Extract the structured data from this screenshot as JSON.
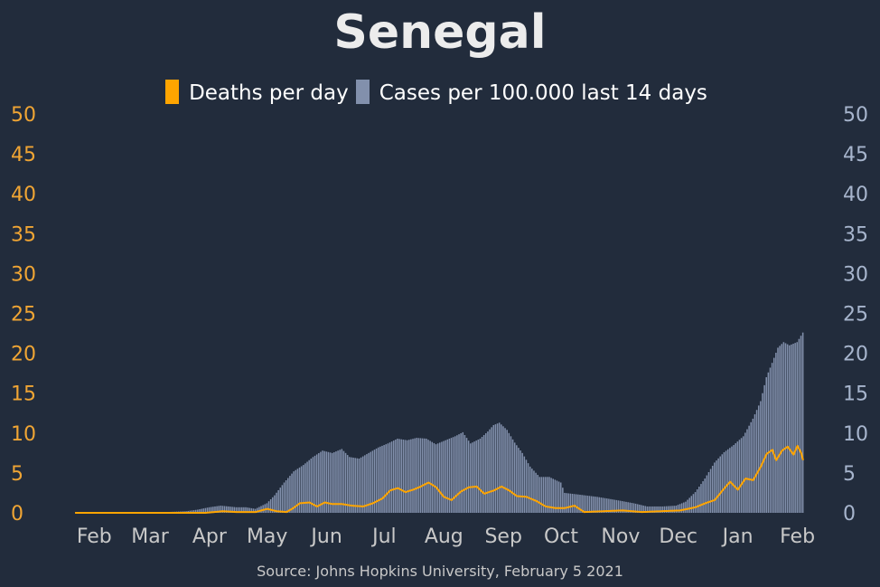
{
  "chart_data": {
    "type": "bar",
    "title": "Senegal",
    "source": "Source: Johns Hopkins University, February 5 2021",
    "colors": {
      "background": "#222c3c",
      "deaths": "#ffa500",
      "cases": "#8290ac"
    },
    "legend": {
      "placement": "top-center",
      "entries": [
        {
          "label": "Deaths per day",
          "color": "#ffa500"
        },
        {
          "label": "Cases per 100.000 last 14 days",
          "color": "#8290ac"
        }
      ]
    },
    "x_axis": {
      "range": [
        "2020-01-22",
        "2021-02-04"
      ],
      "tick_labels": [
        {
          "label": "Feb",
          "date": "2020-02-01"
        },
        {
          "label": "Mar",
          "date": "2020-03-01"
        },
        {
          "label": "Apr",
          "date": "2020-04-01"
        },
        {
          "label": "May",
          "date": "2020-05-01"
        },
        {
          "label": "Jun",
          "date": "2020-06-01"
        },
        {
          "label": "Jul",
          "date": "2020-07-01"
        },
        {
          "label": "Aug",
          "date": "2020-08-01"
        },
        {
          "label": "Sep",
          "date": "2020-09-01"
        },
        {
          "label": "Oct",
          "date": "2020-10-01"
        },
        {
          "label": "Nov",
          "date": "2020-11-01"
        },
        {
          "label": "Dec",
          "date": "2020-12-01"
        },
        {
          "label": "Jan",
          "date": "2021-01-01"
        },
        {
          "label": "Feb",
          "date": "2021-02-01"
        }
      ]
    },
    "y_left": {
      "range": [
        0,
        50
      ],
      "ticks": [
        0,
        5,
        10,
        15,
        20,
        25,
        30,
        35,
        40,
        45,
        50
      ]
    },
    "y_right": {
      "range": [
        0,
        50
      ],
      "ticks": [
        0,
        5,
        10,
        15,
        20,
        25,
        30,
        35,
        40,
        45,
        50
      ]
    },
    "grid": false,
    "series": [
      {
        "name": "Cases per 100.000 last 14 days",
        "type": "bar",
        "axis": "right",
        "points": [
          [
            "2020-01-22",
            0
          ],
          [
            "2020-03-01",
            0
          ],
          [
            "2020-03-10",
            0.1
          ],
          [
            "2020-03-20",
            0.2
          ],
          [
            "2020-03-26",
            0.4
          ],
          [
            "2020-04-01",
            0.7
          ],
          [
            "2020-04-07",
            0.9
          ],
          [
            "2020-04-15",
            0.7
          ],
          [
            "2020-04-20",
            0.7
          ],
          [
            "2020-04-25",
            0.5
          ],
          [
            "2020-05-01",
            1.2
          ],
          [
            "2020-05-05",
            2.2
          ],
          [
            "2020-05-10",
            3.8
          ],
          [
            "2020-05-15",
            5.2
          ],
          [
            "2020-05-20",
            6.0
          ],
          [
            "2020-05-25",
            7.0
          ],
          [
            "2020-05-30",
            7.8
          ],
          [
            "2020-06-04",
            7.5
          ],
          [
            "2020-06-09",
            8.0
          ],
          [
            "2020-06-13",
            7.0
          ],
          [
            "2020-06-18",
            6.8
          ],
          [
            "2020-06-23",
            7.5
          ],
          [
            "2020-06-28",
            8.2
          ],
          [
            "2020-07-03",
            8.7
          ],
          [
            "2020-07-08",
            9.3
          ],
          [
            "2020-07-13",
            9.1
          ],
          [
            "2020-07-18",
            9.4
          ],
          [
            "2020-07-23",
            9.3
          ],
          [
            "2020-07-28",
            8.6
          ],
          [
            "2020-08-02",
            9.1
          ],
          [
            "2020-08-07",
            9.6
          ],
          [
            "2020-08-11",
            10.1
          ],
          [
            "2020-08-15",
            8.7
          ],
          [
            "2020-08-20",
            9.3
          ],
          [
            "2020-08-24",
            10.2
          ],
          [
            "2020-08-27",
            11.0
          ],
          [
            "2020-08-30",
            11.3
          ],
          [
            "2020-09-03",
            10.4
          ],
          [
            "2020-09-07",
            8.8
          ],
          [
            "2020-09-11",
            7.5
          ],
          [
            "2020-09-15",
            5.8
          ],
          [
            "2020-09-20",
            4.5
          ],
          [
            "2020-09-25",
            4.5
          ],
          [
            "2020-10-01",
            3.8
          ],
          [
            "2020-10-03",
            2.5
          ],
          [
            "2020-10-10",
            2.3
          ],
          [
            "2020-10-20",
            2.0
          ],
          [
            "2020-10-30",
            1.6
          ],
          [
            "2020-11-08",
            1.2
          ],
          [
            "2020-11-15",
            0.8
          ],
          [
            "2020-11-23",
            0.8
          ],
          [
            "2020-11-30",
            0.9
          ],
          [
            "2020-12-05",
            1.4
          ],
          [
            "2020-12-10",
            2.6
          ],
          [
            "2020-12-15",
            4.3
          ],
          [
            "2020-12-20",
            6.3
          ],
          [
            "2020-12-25",
            7.6
          ],
          [
            "2020-12-30",
            8.5
          ],
          [
            "2021-01-04",
            9.6
          ],
          [
            "2021-01-09",
            11.8
          ],
          [
            "2021-01-13",
            14.0
          ],
          [
            "2021-01-16",
            17.0
          ],
          [
            "2021-01-19",
            18.8
          ],
          [
            "2021-01-22",
            20.7
          ],
          [
            "2021-01-25",
            21.4
          ],
          [
            "2021-01-28",
            21.0
          ],
          [
            "2021-02-01",
            21.4
          ],
          [
            "2021-02-04",
            22.6
          ]
        ]
      },
      {
        "name": "Deaths per day",
        "type": "line",
        "axis": "left",
        "points": [
          [
            "2020-01-22",
            0
          ],
          [
            "2020-03-30",
            0
          ],
          [
            "2020-04-08",
            0.2
          ],
          [
            "2020-04-15",
            0.1
          ],
          [
            "2020-04-25",
            0.1
          ],
          [
            "2020-05-01",
            0.5
          ],
          [
            "2020-05-06",
            0.2
          ],
          [
            "2020-05-11",
            0.1
          ],
          [
            "2020-05-14",
            0.5
          ],
          [
            "2020-05-18",
            1.2
          ],
          [
            "2020-05-23",
            1.3
          ],
          [
            "2020-05-27",
            0.8
          ],
          [
            "2020-05-31",
            1.3
          ],
          [
            "2020-06-04",
            1.1
          ],
          [
            "2020-06-09",
            1.1
          ],
          [
            "2020-06-14",
            0.9
          ],
          [
            "2020-06-20",
            0.8
          ],
          [
            "2020-06-25",
            1.2
          ],
          [
            "2020-06-30",
            1.8
          ],
          [
            "2020-07-04",
            2.8
          ],
          [
            "2020-07-08",
            3.1
          ],
          [
            "2020-07-12",
            2.6
          ],
          [
            "2020-07-16",
            2.9
          ],
          [
            "2020-07-20",
            3.3
          ],
          [
            "2020-07-24",
            3.8
          ],
          [
            "2020-07-28",
            3.2
          ],
          [
            "2020-08-01",
            2.0
          ],
          [
            "2020-08-05",
            1.6
          ],
          [
            "2020-08-10",
            2.7
          ],
          [
            "2020-08-14",
            3.2
          ],
          [
            "2020-08-18",
            3.3
          ],
          [
            "2020-08-22",
            2.4
          ],
          [
            "2020-08-27",
            2.8
          ],
          [
            "2020-08-31",
            3.3
          ],
          [
            "2020-09-04",
            2.8
          ],
          [
            "2020-09-08",
            2.1
          ],
          [
            "2020-09-13",
            2.0
          ],
          [
            "2020-09-18",
            1.5
          ],
          [
            "2020-09-23",
            0.8
          ],
          [
            "2020-09-28",
            0.6
          ],
          [
            "2020-10-03",
            0.6
          ],
          [
            "2020-10-08",
            0.9
          ],
          [
            "2020-10-13",
            0.1
          ],
          [
            "2020-10-23",
            0.2
          ],
          [
            "2020-11-02",
            0.3
          ],
          [
            "2020-11-12",
            0.1
          ],
          [
            "2020-11-22",
            0.2
          ],
          [
            "2020-12-02",
            0.3
          ],
          [
            "2020-12-10",
            0.7
          ],
          [
            "2020-12-15",
            1.2
          ],
          [
            "2020-12-20",
            1.6
          ],
          [
            "2020-12-24",
            2.8
          ],
          [
            "2020-12-28",
            3.9
          ],
          [
            "2021-01-01",
            2.9
          ],
          [
            "2021-01-05",
            4.3
          ],
          [
            "2021-01-09",
            4.1
          ],
          [
            "2021-01-13",
            5.8
          ],
          [
            "2021-01-16",
            7.4
          ],
          [
            "2021-01-19",
            7.9
          ],
          [
            "2021-01-21",
            6.6
          ],
          [
            "2021-01-24",
            7.8
          ],
          [
            "2021-01-27",
            8.3
          ],
          [
            "2021-01-30",
            7.3
          ],
          [
            "2021-02-01",
            8.4
          ],
          [
            "2021-02-03",
            7.5
          ],
          [
            "2021-02-04",
            6.6
          ]
        ]
      }
    ]
  }
}
